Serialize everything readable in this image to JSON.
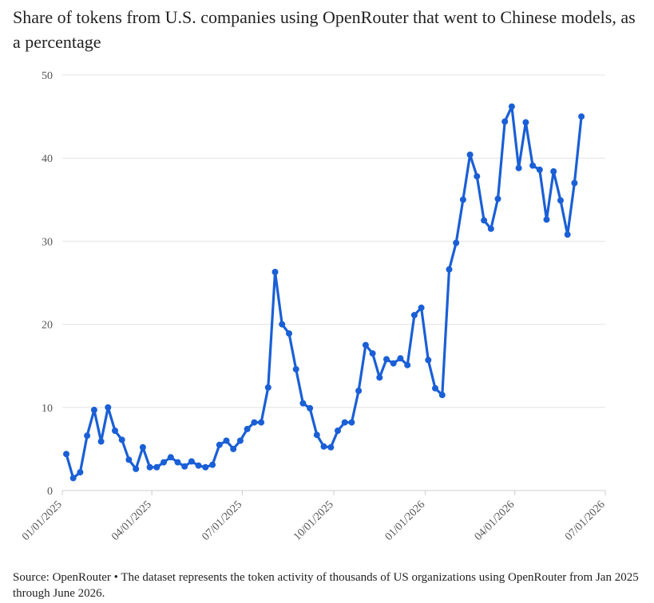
{
  "title": "Share of tokens from U.S. companies using OpenRouter that went to Chinese models, as a percentage",
  "source": "Source: OpenRouter • The dataset represents the token activity of thousands of US organizations using OpenRouter from Jan 2025 through June 2026.",
  "colors": {
    "line": "#1a5fd6",
    "grid": "#e3e3e3",
    "axis": "#cccccc"
  },
  "chart_data": {
    "type": "line",
    "title": "Share of tokens from U.S. companies using OpenRouter that went to Chinese models, as a percentage",
    "xlabel": "",
    "ylabel": "",
    "ylim": [
      0,
      50
    ],
    "yticks": [
      0,
      10,
      20,
      30,
      40,
      50
    ],
    "xlim": [
      "2025-01-01",
      "2026-07-01"
    ],
    "xticks": [
      {
        "date": "2025-01-01",
        "label": "01/01/2025"
      },
      {
        "date": "2025-04-01",
        "label": "04/01/2025"
      },
      {
        "date": "2025-07-01",
        "label": "07/01/2025"
      },
      {
        "date": "2025-10-01",
        "label": "10/01/2025"
      },
      {
        "date": "2026-01-01",
        "label": "01/01/2026"
      },
      {
        "date": "2026-04-01",
        "label": "04/01/2026"
      },
      {
        "date": "2026-07-01",
        "label": "07/01/2026"
      }
    ],
    "grid": true,
    "series": [
      {
        "points": [
          [
            "2025-01-05",
            4.4
          ],
          [
            "2025-01-12",
            1.5
          ],
          [
            "2025-01-19",
            2.2
          ],
          [
            "2025-01-26",
            6.6
          ],
          [
            "2025-02-02",
            9.7
          ],
          [
            "2025-02-09",
            5.9
          ],
          [
            "2025-02-16",
            10.0
          ],
          [
            "2025-02-23",
            7.2
          ],
          [
            "2025-03-02",
            6.1
          ],
          [
            "2025-03-09",
            3.7
          ],
          [
            "2025-03-16",
            2.6
          ],
          [
            "2025-03-23",
            5.2
          ],
          [
            "2025-03-30",
            2.8
          ],
          [
            "2025-04-06",
            2.8
          ],
          [
            "2025-04-13",
            3.4
          ],
          [
            "2025-04-20",
            4.0
          ],
          [
            "2025-04-27",
            3.4
          ],
          [
            "2025-05-04",
            2.9
          ],
          [
            "2025-05-11",
            3.5
          ],
          [
            "2025-05-18",
            3.0
          ],
          [
            "2025-05-25",
            2.8
          ],
          [
            "2025-06-01",
            3.1
          ],
          [
            "2025-06-08",
            5.5
          ],
          [
            "2025-06-15",
            6.0
          ],
          [
            "2025-06-22",
            5.0
          ],
          [
            "2025-06-29",
            6.0
          ],
          [
            "2025-07-06",
            7.4
          ],
          [
            "2025-07-13",
            8.2
          ],
          [
            "2025-07-20",
            8.2
          ],
          [
            "2025-07-27",
            12.4
          ],
          [
            "2025-08-03",
            26.3
          ],
          [
            "2025-08-10",
            20.0
          ],
          [
            "2025-08-17",
            18.9
          ],
          [
            "2025-08-24",
            14.6
          ],
          [
            "2025-08-31",
            10.5
          ],
          [
            "2025-09-07",
            9.9
          ],
          [
            "2025-09-14",
            6.7
          ],
          [
            "2025-09-21",
            5.3
          ],
          [
            "2025-09-28",
            5.2
          ],
          [
            "2025-10-05",
            7.2
          ],
          [
            "2025-10-12",
            8.2
          ],
          [
            "2025-10-19",
            8.2
          ],
          [
            "2025-10-26",
            12.0
          ],
          [
            "2025-11-02",
            17.5
          ],
          [
            "2025-11-09",
            16.5
          ],
          [
            "2025-11-16",
            13.6
          ],
          [
            "2025-11-23",
            15.8
          ],
          [
            "2025-11-30",
            15.3
          ],
          [
            "2025-12-07",
            15.9
          ],
          [
            "2025-12-14",
            15.1
          ],
          [
            "2025-12-21",
            21.1
          ],
          [
            "2025-12-28",
            22.0
          ],
          [
            "2026-01-04",
            15.7
          ],
          [
            "2026-01-11",
            12.3
          ],
          [
            "2026-01-18",
            11.5
          ],
          [
            "2026-01-25",
            26.6
          ],
          [
            "2026-02-01",
            29.8
          ],
          [
            "2026-02-08",
            35.0
          ],
          [
            "2026-02-15",
            40.4
          ],
          [
            "2026-02-22",
            37.8
          ],
          [
            "2026-03-01",
            32.5
          ],
          [
            "2026-03-08",
            31.5
          ],
          [
            "2026-03-15",
            35.1
          ],
          [
            "2026-03-22",
            44.4
          ],
          [
            "2026-03-29",
            46.2
          ],
          [
            "2026-04-05",
            38.8
          ],
          [
            "2026-04-12",
            44.3
          ],
          [
            "2026-04-19",
            39.1
          ],
          [
            "2026-04-26",
            38.6
          ],
          [
            "2026-05-03",
            32.6
          ],
          [
            "2026-05-10",
            38.4
          ],
          [
            "2026-05-17",
            34.9
          ],
          [
            "2026-05-24",
            30.8
          ],
          [
            "2026-05-31",
            37.0
          ],
          [
            "2026-06-07",
            45.0
          ]
        ]
      }
    ]
  }
}
